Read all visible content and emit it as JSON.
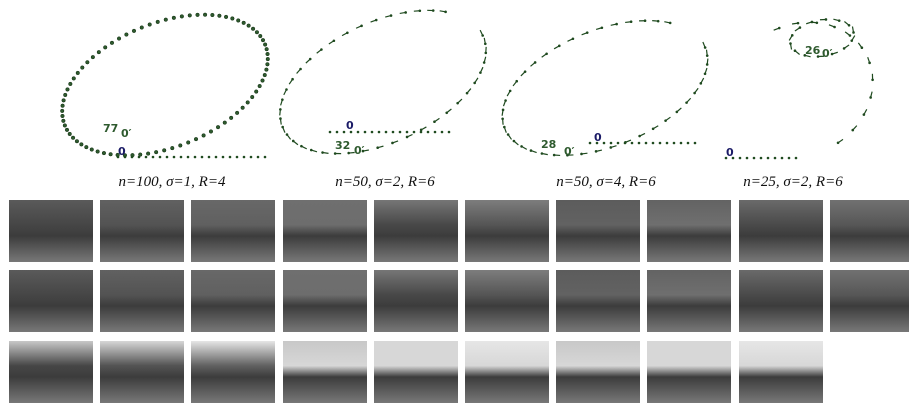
{
  "panels": [
    {
      "caption": "n=100, σ=1, R=4",
      "labels": [
        "77",
        "0′",
        "0"
      ]
    },
    {
      "caption": "n=50, σ=2, R=6",
      "labels": [
        "0",
        "32",
        "0′"
      ]
    },
    {
      "caption": "n=50, σ=4, R=6",
      "labels": [
        "28",
        "0′",
        "0"
      ]
    },
    {
      "caption": "n=25, σ=2, R=6",
      "labels": [
        "26",
        "0′",
        "0"
      ]
    }
  ]
}
